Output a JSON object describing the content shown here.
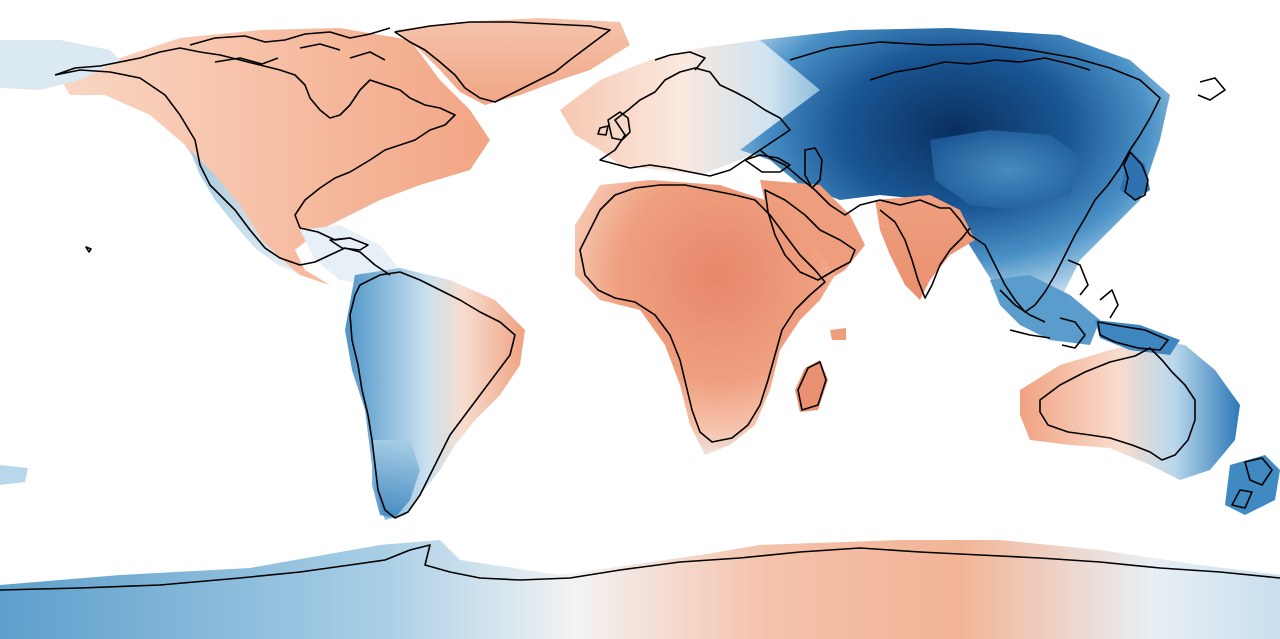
{
  "map": {
    "projection": "equirectangular",
    "background": "#ffffff",
    "coastline_color": "#000000",
    "palette": {
      "warm_light": "#fbe1d4",
      "warm_mid": "#f5b79a",
      "warm_strong": "#ea8f6e",
      "neutral": "#f5f5f5",
      "cool_light": "#d6e8f3",
      "cool_mid": "#8ec3e0",
      "cool_strong": "#3e8ac1",
      "cool_deep": "#1a5795",
      "cool_darkest": "#0b3466"
    }
  }
}
